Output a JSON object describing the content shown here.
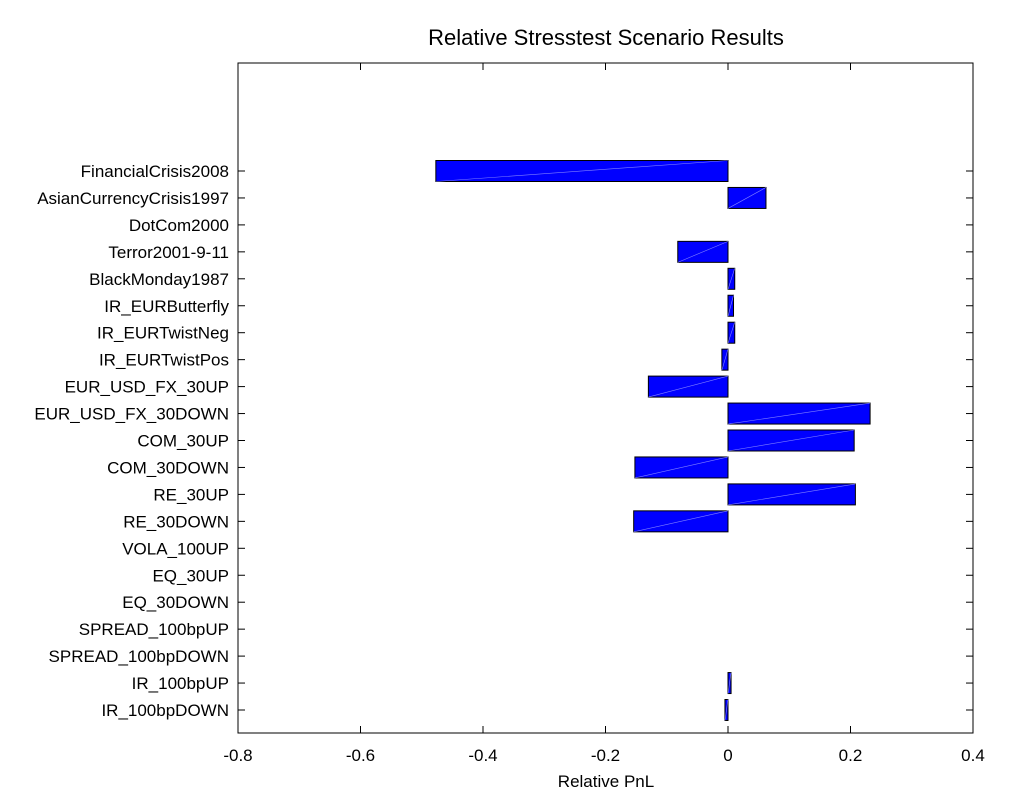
{
  "chart_data": {
    "type": "bar",
    "orientation": "horizontal",
    "title": "Relative Stresstest Scenario Results",
    "xlabel": "Relative PnL",
    "ylabel": "",
    "xlim": [
      -0.8,
      0.4
    ],
    "xticks": [
      -0.8,
      -0.6,
      -0.4,
      -0.2,
      0,
      0.2,
      0.4
    ],
    "xtick_labels": [
      "-0.8",
      "-0.6",
      "-0.4",
      "-0.2",
      "0",
      "0.2",
      "0.4"
    ],
    "grid": false,
    "bar_color": "#0000ff",
    "categories": [
      "FinancialCrisis2008",
      "AsianCurrencyCrisis1997",
      "DotCom2000",
      "Terror2001-9-11",
      "BlackMonday1987",
      "IR_EURButterfly",
      "IR_EURTwistNeg",
      "IR_EURTwistPos",
      "EUR_USD_FX_30UP",
      "EUR_USD_FX_30DOWN",
      "COM_30UP",
      "COM_30DOWN",
      "RE_30UP",
      "RE_30DOWN",
      "VOLA_100UP",
      "EQ_30UP",
      "EQ_30DOWN",
      "SPREAD_100bpUP",
      "SPREAD_100bpDOWN",
      "IR_100bpUP",
      "IR_100bpDOWN"
    ],
    "values": [
      -0.477,
      0.062,
      0,
      -0.082,
      0.011,
      0.009,
      0.011,
      -0.01,
      -0.13,
      0.232,
      0.206,
      -0.152,
      0.208,
      -0.154,
      0,
      0,
      0,
      0,
      0,
      0.005,
      -0.005
    ]
  }
}
